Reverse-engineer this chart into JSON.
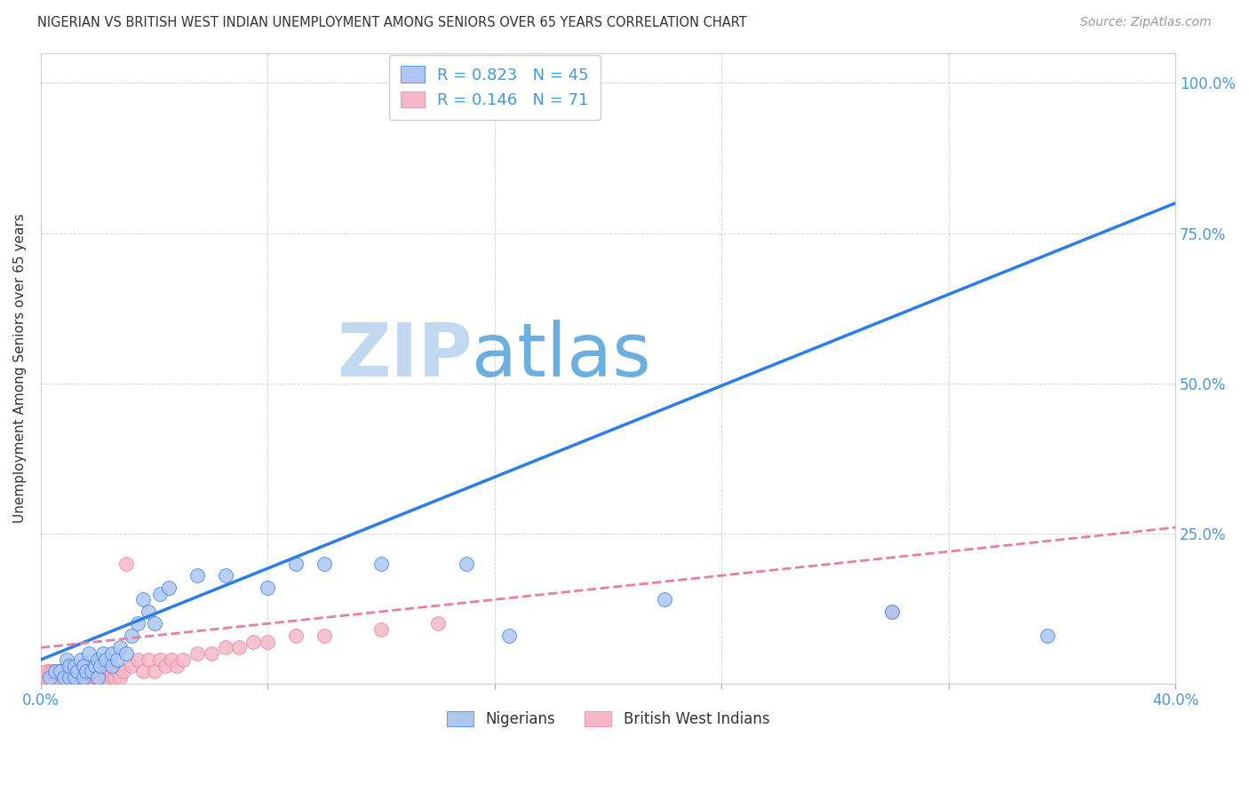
{
  "title": "NIGERIAN VS BRITISH WEST INDIAN UNEMPLOYMENT AMONG SENIORS OVER 65 YEARS CORRELATION CHART",
  "source": "Source: ZipAtlas.com",
  "ylabel": "Unemployment Among Seniors over 65 years",
  "xlim": [
    0.0,
    0.4
  ],
  "ylim": [
    0.0,
    1.05
  ],
  "xticks": [
    0.0,
    0.08,
    0.16,
    0.24,
    0.32,
    0.4
  ],
  "yticks": [
    0.0,
    0.25,
    0.5,
    0.75,
    1.0
  ],
  "nigerian_R": 0.823,
  "nigerian_N": 45,
  "bwi_R": 0.146,
  "bwi_N": 71,
  "nigerian_color": "#aec6f0",
  "nigerian_line_color": "#2b7de9",
  "bwi_color": "#f5b8c8",
  "bwi_line_color": "#e87fa0",
  "watermark_zip_color": "#c8ddf5",
  "watermark_atlas_color": "#a0c8e8",
  "title_color": "#333333",
  "axis_color": "#4499dd",
  "grid_color": "#cccccc",
  "background_color": "#ffffff",
  "nigerian_line_x0": 0.0,
  "nigerian_line_y0": 0.04,
  "nigerian_line_x1": 0.4,
  "nigerian_line_y1": 0.8,
  "bwi_line_x0": 0.0,
  "bwi_line_y0": 0.06,
  "bwi_line_x1": 0.4,
  "bwi_line_y1": 0.26,
  "nigerian_scatter_x": [
    0.003,
    0.005,
    0.007,
    0.008,
    0.009,
    0.01,
    0.01,
    0.012,
    0.012,
    0.013,
    0.014,
    0.015,
    0.015,
    0.016,
    0.017,
    0.018,
    0.019,
    0.02,
    0.02,
    0.021,
    0.022,
    0.023,
    0.025,
    0.025,
    0.027,
    0.028,
    0.03,
    0.032,
    0.034,
    0.036,
    0.038,
    0.04,
    0.042,
    0.045,
    0.055,
    0.065,
    0.08,
    0.09,
    0.1,
    0.12,
    0.15,
    0.165,
    0.22,
    0.3,
    0.355
  ],
  "nigerian_scatter_y": [
    0.01,
    0.02,
    0.02,
    0.01,
    0.04,
    0.01,
    0.03,
    0.01,
    0.03,
    0.02,
    0.04,
    0.01,
    0.03,
    0.02,
    0.05,
    0.02,
    0.03,
    0.01,
    0.04,
    0.03,
    0.05,
    0.04,
    0.03,
    0.05,
    0.04,
    0.06,
    0.05,
    0.08,
    0.1,
    0.14,
    0.12,
    0.1,
    0.15,
    0.16,
    0.18,
    0.18,
    0.16,
    0.2,
    0.2,
    0.2,
    0.2,
    0.08,
    0.14,
    0.12,
    0.08
  ],
  "bwi_scatter_x": [
    0.001,
    0.002,
    0.002,
    0.003,
    0.003,
    0.004,
    0.004,
    0.005,
    0.005,
    0.006,
    0.006,
    0.007,
    0.007,
    0.008,
    0.008,
    0.009,
    0.009,
    0.01,
    0.01,
    0.011,
    0.011,
    0.012,
    0.012,
    0.013,
    0.013,
    0.014,
    0.014,
    0.015,
    0.015,
    0.016,
    0.016,
    0.017,
    0.017,
    0.018,
    0.018,
    0.019,
    0.019,
    0.02,
    0.02,
    0.021,
    0.022,
    0.023,
    0.024,
    0.025,
    0.025,
    0.026,
    0.027,
    0.028,
    0.029,
    0.03,
    0.032,
    0.034,
    0.036,
    0.038,
    0.04,
    0.042,
    0.044,
    0.046,
    0.048,
    0.05,
    0.055,
    0.06,
    0.065,
    0.07,
    0.075,
    0.08,
    0.09,
    0.1,
    0.12,
    0.14,
    0.3
  ],
  "bwi_scatter_y": [
    0.01,
    0.01,
    0.02,
    0.01,
    0.02,
    0.01,
    0.02,
    0.01,
    0.02,
    0.01,
    0.02,
    0.01,
    0.02,
    0.01,
    0.02,
    0.01,
    0.03,
    0.01,
    0.02,
    0.01,
    0.02,
    0.01,
    0.02,
    0.01,
    0.02,
    0.01,
    0.02,
    0.01,
    0.03,
    0.01,
    0.02,
    0.01,
    0.02,
    0.01,
    0.02,
    0.01,
    0.02,
    0.01,
    0.02,
    0.01,
    0.02,
    0.01,
    0.02,
    0.01,
    0.02,
    0.01,
    0.02,
    0.01,
    0.02,
    0.2,
    0.03,
    0.04,
    0.02,
    0.04,
    0.02,
    0.04,
    0.03,
    0.04,
    0.03,
    0.04,
    0.05,
    0.05,
    0.06,
    0.06,
    0.07,
    0.07,
    0.08,
    0.08,
    0.09,
    0.1,
    0.12
  ]
}
